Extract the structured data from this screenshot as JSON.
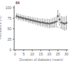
{
  "chart_data": {
    "type": "scatter",
    "xlabel": "Duration of diabetes (years)",
    "ylabel": "Prevalence (%)",
    "annotation": "84",
    "xlim": [
      -0.5,
      31
    ],
    "ylim": [
      0,
      105
    ],
    "xticks": [
      0,
      5,
      10,
      15,
      20,
      25,
      30
    ],
    "yticks": [
      0,
      25,
      50,
      75,
      100
    ],
    "series": [
      {
        "type": "scatter",
        "marker": "square",
        "color": "#666666",
        "x": [
          1,
          2,
          3,
          4,
          5,
          6,
          7,
          8,
          9,
          10,
          11,
          12,
          13,
          14,
          15,
          16,
          17,
          18,
          19,
          20,
          21,
          22,
          23,
          24,
          25,
          26,
          27,
          28,
          29,
          30
        ],
        "values": [
          80,
          78,
          77,
          76,
          75,
          74,
          73,
          72,
          71,
          70,
          69,
          68,
          67,
          66,
          65,
          65,
          64,
          63,
          63,
          62,
          63,
          64,
          65,
          67,
          80,
          72,
          65,
          63,
          62,
          64
        ],
        "ci_lo": [
          73,
          70,
          70,
          69,
          68,
          67,
          66,
          64,
          63,
          62,
          61,
          60,
          58,
          57,
          56,
          55,
          54,
          53,
          52,
          51,
          52,
          52,
          53,
          55,
          65,
          57,
          50,
          47,
          45,
          47
        ],
        "ci_hi": [
          87,
          86,
          84,
          83,
          82,
          81,
          80,
          80,
          79,
          78,
          77,
          76,
          76,
          75,
          74,
          75,
          74,
          73,
          74,
          73,
          74,
          76,
          77,
          79,
          95,
          87,
          80,
          79,
          79,
          81
        ]
      },
      {
        "type": "line",
        "line_style": "dashed",
        "color": "#bbbbbb",
        "x": [
          0,
          1,
          2,
          3,
          4,
          5,
          6,
          7,
          8,
          9,
          10,
          11,
          12,
          13,
          14,
          15,
          16,
          17,
          18,
          19,
          20,
          21,
          22,
          23,
          24,
          25,
          26,
          27,
          28,
          29,
          30
        ],
        "values": [
          78,
          77,
          76,
          75,
          74,
          73,
          72,
          71,
          70,
          69,
          68,
          67,
          66,
          65,
          64,
          63,
          62,
          61,
          60,
          59,
          58,
          57,
          56,
          55,
          55,
          54,
          53,
          53,
          52,
          51,
          51
        ]
      },
      {
        "type": "line",
        "line_style": "dashed",
        "color": "#bbbbbb",
        "x": [
          0,
          1,
          2,
          3,
          4,
          5,
          6,
          7,
          8,
          9,
          10,
          11,
          12,
          13,
          14,
          15,
          16,
          17,
          18,
          19,
          20,
          21,
          22,
          23,
          24,
          25,
          26,
          27,
          28,
          29,
          30
        ],
        "values": [
          76,
          75,
          74,
          73,
          72,
          71,
          70,
          69,
          68,
          67,
          66,
          65,
          64,
          63,
          62,
          61,
          60,
          59,
          58,
          57,
          56,
          56,
          55,
          54,
          54,
          53,
          52,
          52,
          51,
          50,
          50
        ]
      }
    ]
  }
}
